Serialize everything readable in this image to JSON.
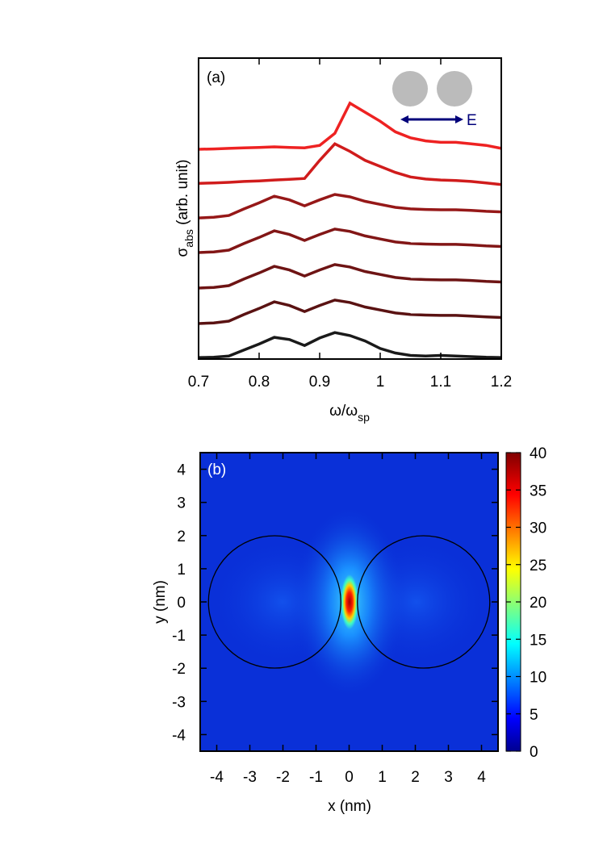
{
  "chart_data": [
    {
      "type": "line",
      "panel_label": "(a)",
      "xlabel_parts": [
        "ω/ω",
        "sp"
      ],
      "ylabel_parts": [
        "σ",
        "abs",
        " (arb. unit)"
      ],
      "inset_label": "E",
      "x": [
        0.7,
        0.725,
        0.75,
        0.775,
        0.8,
        0.825,
        0.85,
        0.875,
        0.9,
        0.925,
        0.95,
        0.975,
        1.0,
        1.025,
        1.05,
        1.075,
        1.1,
        1.125,
        1.15,
        1.175,
        1.2
      ],
      "xlim": [
        0.7,
        1.2
      ],
      "xticks": [
        0.7,
        0.8,
        0.9,
        1,
        1.1,
        1.2
      ],
      "ylim": [
        0,
        10
      ],
      "series": [
        {
          "color": "#1a1a1a",
          "values": [
            0.05,
            0.06,
            0.1,
            0.3,
            0.5,
            0.72,
            0.65,
            0.45,
            0.7,
            0.88,
            0.78,
            0.6,
            0.35,
            0.2,
            0.12,
            0.1,
            0.12,
            0.1,
            0.08,
            0.06,
            0.05
          ]
        },
        {
          "color": "#5a1212",
          "values": [
            1.18,
            1.2,
            1.26,
            1.48,
            1.68,
            1.9,
            1.78,
            1.58,
            1.78,
            1.96,
            1.88,
            1.73,
            1.63,
            1.53,
            1.48,
            1.46,
            1.45,
            1.45,
            1.43,
            1.4,
            1.38
          ]
        },
        {
          "color": "#6e1414",
          "values": [
            2.36,
            2.38,
            2.44,
            2.66,
            2.86,
            3.08,
            2.96,
            2.76,
            2.96,
            3.14,
            3.06,
            2.91,
            2.81,
            2.71,
            2.66,
            2.64,
            2.63,
            2.63,
            2.61,
            2.58,
            2.56
          ]
        },
        {
          "color": "#821616",
          "values": [
            3.54,
            3.56,
            3.62,
            3.84,
            4.04,
            4.26,
            4.14,
            3.94,
            4.14,
            4.32,
            4.24,
            4.09,
            3.99,
            3.89,
            3.84,
            3.82,
            3.81,
            3.81,
            3.79,
            3.76,
            3.74
          ]
        },
        {
          "color": "#961818",
          "values": [
            4.69,
            4.71,
            4.77,
            4.99,
            5.19,
            5.41,
            5.29,
            5.09,
            5.29,
            5.47,
            5.39,
            5.24,
            5.14,
            5.04,
            4.99,
            4.97,
            4.96,
            4.96,
            4.94,
            4.91,
            4.89
          ]
        },
        {
          "color": "#d01c1c",
          "values": [
            5.84,
            5.85,
            5.87,
            5.9,
            5.92,
            5.95,
            5.97,
            6.0,
            6.6,
            7.15,
            6.9,
            6.6,
            6.4,
            6.2,
            6.05,
            5.98,
            5.95,
            5.93,
            5.9,
            5.85,
            5.8
          ]
        },
        {
          "color": "#ee2222",
          "values": [
            6.97,
            6.98,
            7.0,
            7.02,
            7.03,
            7.05,
            7.03,
            7.02,
            7.1,
            7.5,
            8.5,
            8.2,
            7.9,
            7.55,
            7.35,
            7.25,
            7.2,
            7.2,
            7.15,
            7.1,
            7.0
          ]
        }
      ]
    },
    {
      "type": "heatmap",
      "panel_label": "(b)",
      "xlabel": "x (nm)",
      "ylabel": "y (nm)",
      "xlim": [
        -4.5,
        4.5
      ],
      "ylim": [
        -4.5,
        4.5
      ],
      "xticks": [
        -4,
        -3,
        -2,
        -1,
        0,
        1,
        2,
        3,
        4
      ],
      "yticks": [
        -4,
        -3,
        -2,
        -1,
        0,
        1,
        2,
        3,
        4
      ],
      "clim": [
        0,
        40
      ],
      "cticks": [
        0,
        5,
        10,
        15,
        20,
        25,
        30,
        35,
        40
      ],
      "circles": [
        {
          "cx": -2.25,
          "cy": 0,
          "r": 2
        },
        {
          "cx": 2.25,
          "cy": 0,
          "r": 2
        }
      ]
    }
  ]
}
